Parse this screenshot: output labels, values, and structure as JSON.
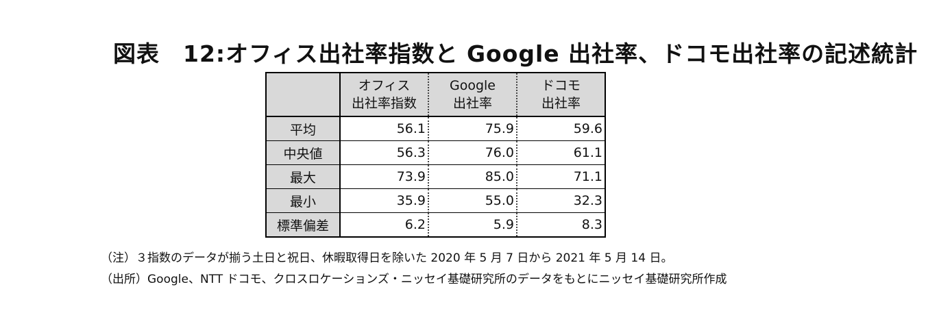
{
  "title": "図表　12:オフィス出社率指数と Google 出社率、ドコモ出社率の記述統計",
  "table": {
    "columns": [
      {
        "line1": "オフィス",
        "line2": "出社率指数"
      },
      {
        "line1": "Google",
        "line2": "出社率"
      },
      {
        "line1": "ドコモ",
        "line2": "出社率"
      }
    ],
    "rows": [
      {
        "label": "平均",
        "values": [
          "56.1",
          "75.9",
          "59.6"
        ]
      },
      {
        "label": "中央値",
        "values": [
          "56.3",
          "76.0",
          "61.1"
        ]
      },
      {
        "label": "最大",
        "values": [
          "73.9",
          "85.0",
          "71.1"
        ]
      },
      {
        "label": "最小",
        "values": [
          "35.9",
          "55.0",
          "32.3"
        ]
      },
      {
        "label": "標準偏差",
        "values": [
          "6.2",
          "5.9",
          "8.3"
        ]
      }
    ]
  },
  "notes": {
    "note": "（注）３指数のデータが揃う土日と祝日、休暇取得日を除いた 2020 年 5 月 7 日から 2021 年 5 月 14 日。",
    "source": "（出所）Google、NTT ドコモ、クロスロケーションズ・ニッセイ基礎研究所のデータをもとにニッセイ基礎研究所作成"
  }
}
